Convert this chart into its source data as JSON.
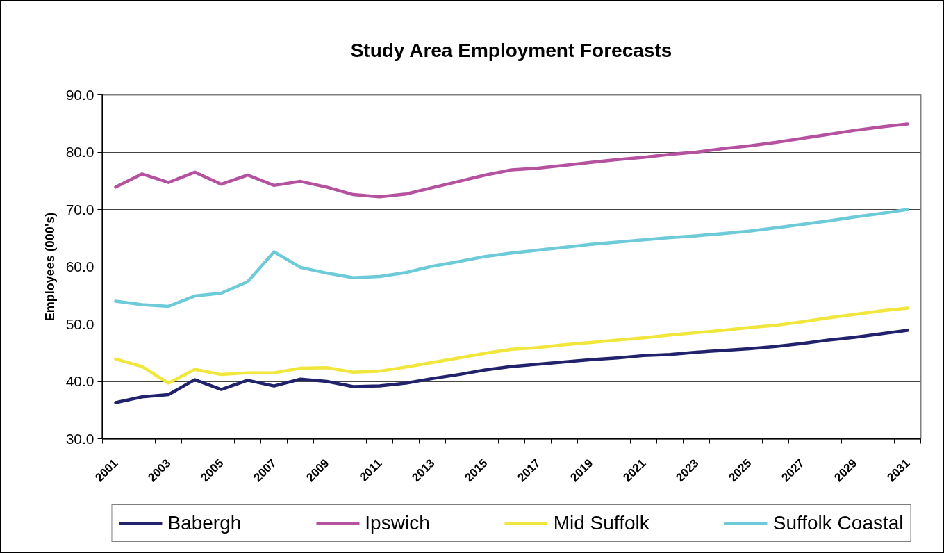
{
  "chart_data": {
    "type": "line",
    "title": "Study Area Employment Forecasts",
    "ylabel": "Employees (000's)",
    "categories": [
      "2001",
      null,
      "2003",
      null,
      "2005",
      null,
      "2007",
      null,
      "2009",
      null,
      "2011",
      null,
      "2013",
      null,
      "2015",
      null,
      "2017",
      null,
      "2019",
      null,
      "2021",
      null,
      "2023",
      null,
      "2025",
      null,
      "2027",
      null,
      "2029",
      null,
      "2031"
    ],
    "series": [
      {
        "name": "Babergh",
        "color": "#22226c",
        "values": [
          36.3,
          37.3,
          37.7,
          40.3,
          38.6,
          40.2,
          39.2,
          40.4,
          40.0,
          39.1,
          39.2,
          39.7,
          40.5,
          41.2,
          42.0,
          42.6,
          43.0,
          43.4,
          43.8,
          44.1,
          44.5,
          44.7,
          45.1,
          45.4,
          45.7,
          46.1,
          46.6,
          47.2,
          47.7,
          48.3,
          48.9
        ]
      },
      {
        "name": "Ipswich",
        "color": "#b4529f",
        "values": [
          73.9,
          76.2,
          74.7,
          76.5,
          74.4,
          76.0,
          74.2,
          74.9,
          73.9,
          72.6,
          72.2,
          72.7,
          73.8,
          74.9,
          76.0,
          76.9,
          77.2,
          77.7,
          78.2,
          78.7,
          79.1,
          79.6,
          80.0,
          80.6,
          81.1,
          81.7,
          82.4,
          83.1,
          83.8,
          84.4,
          84.9
        ]
      },
      {
        "name": "Mid Suffolk",
        "color": "#f0e63c",
        "values": [
          43.9,
          42.6,
          39.7,
          42.1,
          41.2,
          41.5,
          41.5,
          42.3,
          42.4,
          41.6,
          41.8,
          42.5,
          43.3,
          44.1,
          44.9,
          45.6,
          45.9,
          46.4,
          46.8,
          47.2,
          47.6,
          48.1,
          48.5,
          48.9,
          49.4,
          49.8,
          50.4,
          51.1,
          51.7,
          52.3,
          52.8
        ]
      },
      {
        "name": "Suffolk Coastal",
        "color": "#6dcad8",
        "values": [
          54.0,
          53.4,
          53.1,
          54.9,
          55.4,
          57.4,
          62.6,
          59.9,
          58.9,
          58.1,
          58.3,
          59.0,
          60.1,
          60.9,
          61.8,
          62.4,
          62.9,
          63.4,
          63.9,
          64.3,
          64.7,
          65.1,
          65.4,
          65.8,
          66.2,
          66.8,
          67.4,
          68.0,
          68.7,
          69.3,
          70.0
        ]
      }
    ],
    "ylim": [
      30,
      90
    ],
    "yticks": [
      {
        "value": 30,
        "label": "30.0"
      },
      {
        "value": 40,
        "label": "40.0"
      },
      {
        "value": 50,
        "label": "50.0"
      },
      {
        "value": 60,
        "label": "60.0"
      },
      {
        "value": 70,
        "label": "70.0"
      },
      {
        "value": 80,
        "label": "80.0"
      },
      {
        "value": 90,
        "label": "90.0"
      }
    ],
    "grid": "y",
    "legend": "bottom"
  }
}
